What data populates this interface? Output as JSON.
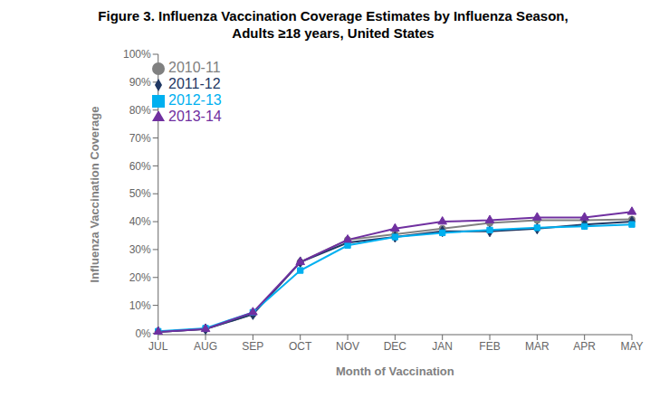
{
  "chart_data": {
    "type": "line",
    "title": "Figure 3. Influenza Vaccination Coverage Estimates by Influenza Season,\nAdults ≥18 years, United States",
    "x_label": "Month of Vaccination",
    "y_label": "Influenza Vaccination Coverage",
    "categories": [
      "JUL",
      "AUG",
      "SEP",
      "OCT",
      "NOV",
      "DEC",
      "JAN",
      "FEB",
      "MAR",
      "APR",
      "MAY"
    ],
    "series": [
      {
        "name": "2010-11",
        "color": "#808080",
        "marker": "circle",
        "values": [
          0.005,
          0.015,
          0.068,
          0.255,
          0.335,
          0.355,
          0.375,
          0.395,
          0.405,
          0.405,
          0.408
        ]
      },
      {
        "name": "2011-12",
        "color": "#1F3864",
        "marker": "diamond",
        "values": [
          0.005,
          0.015,
          0.068,
          0.255,
          0.325,
          0.345,
          0.365,
          0.365,
          0.375,
          0.39,
          0.4
        ]
      },
      {
        "name": "2012-13",
        "color": "#00B0F0",
        "marker": "square",
        "values": [
          0.007,
          0.018,
          0.075,
          0.225,
          0.315,
          0.345,
          0.36,
          0.37,
          0.378,
          0.383,
          0.39
        ]
      },
      {
        "name": "2013-14",
        "color": "#7030A0",
        "marker": "triangle",
        "values": [
          0.005,
          0.015,
          0.075,
          0.255,
          0.335,
          0.375,
          0.4,
          0.405,
          0.415,
          0.415,
          0.435
        ]
      }
    ],
    "ylim": [
      -0.005,
      1.0
    ],
    "yticks": [
      {
        "value": 0,
        "label": "0%"
      },
      {
        "value": 0.1,
        "label": "10%"
      },
      {
        "value": 0.2,
        "label": "20%"
      },
      {
        "value": 0.3,
        "label": "30%"
      },
      {
        "value": 0.4,
        "label": "40%"
      },
      {
        "value": 0.5,
        "label": "50%"
      },
      {
        "value": 0.6,
        "label": "60%"
      },
      {
        "value": 0.7,
        "label": "70%"
      },
      {
        "value": 0.8,
        "label": "80%"
      },
      {
        "value": 0.9,
        "label": "90%"
      },
      {
        "value": 1.0,
        "label": "100%"
      }
    ],
    "grid": false,
    "legend": "upper left"
  }
}
